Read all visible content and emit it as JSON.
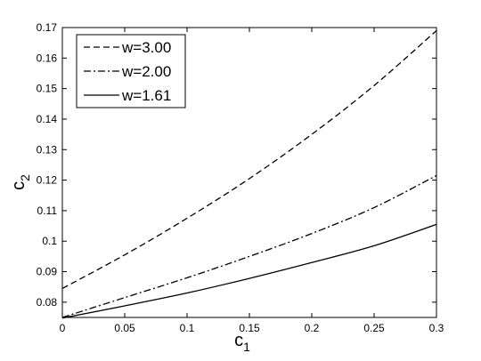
{
  "chart_data": {
    "type": "line",
    "title": "",
    "xlabel_main": "c",
    "xlabel_sub": "1",
    "ylabel_main": "c",
    "ylabel_sub": "2",
    "xlim": [
      0,
      0.3
    ],
    "ylim": [
      0.075,
      0.17
    ],
    "xticks": [
      "0",
      "0.05",
      "0.1",
      "0.15",
      "0.2",
      "0.25",
      "0.3"
    ],
    "yticks": [
      "0.08",
      "0.09",
      "0.1",
      "0.11",
      "0.12",
      "0.13",
      "0.14",
      "0.15",
      "0.16",
      "0.17"
    ],
    "grid": false,
    "legend_position": "top-left",
    "series": [
      {
        "name": "w=3.00",
        "style": "dashed",
        "x": [
          0,
          0.05,
          0.1,
          0.15,
          0.2,
          0.25,
          0.3
        ],
        "y": [
          0.0845,
          0.0955,
          0.1075,
          0.1205,
          0.135,
          0.151,
          0.169
        ]
      },
      {
        "name": "w=2.00",
        "style": "dash-dot",
        "x": [
          0,
          0.05,
          0.1,
          0.15,
          0.2,
          0.25,
          0.3
        ],
        "y": [
          0.075,
          0.0815,
          0.088,
          0.095,
          0.1025,
          0.111,
          0.1215
        ]
      },
      {
        "name": "w=1.61",
        "style": "solid",
        "x": [
          0,
          0.05,
          0.1,
          0.15,
          0.2,
          0.25,
          0.3
        ],
        "y": [
          0.0748,
          0.0788,
          0.083,
          0.0878,
          0.093,
          0.0985,
          0.1055
        ]
      }
    ]
  }
}
